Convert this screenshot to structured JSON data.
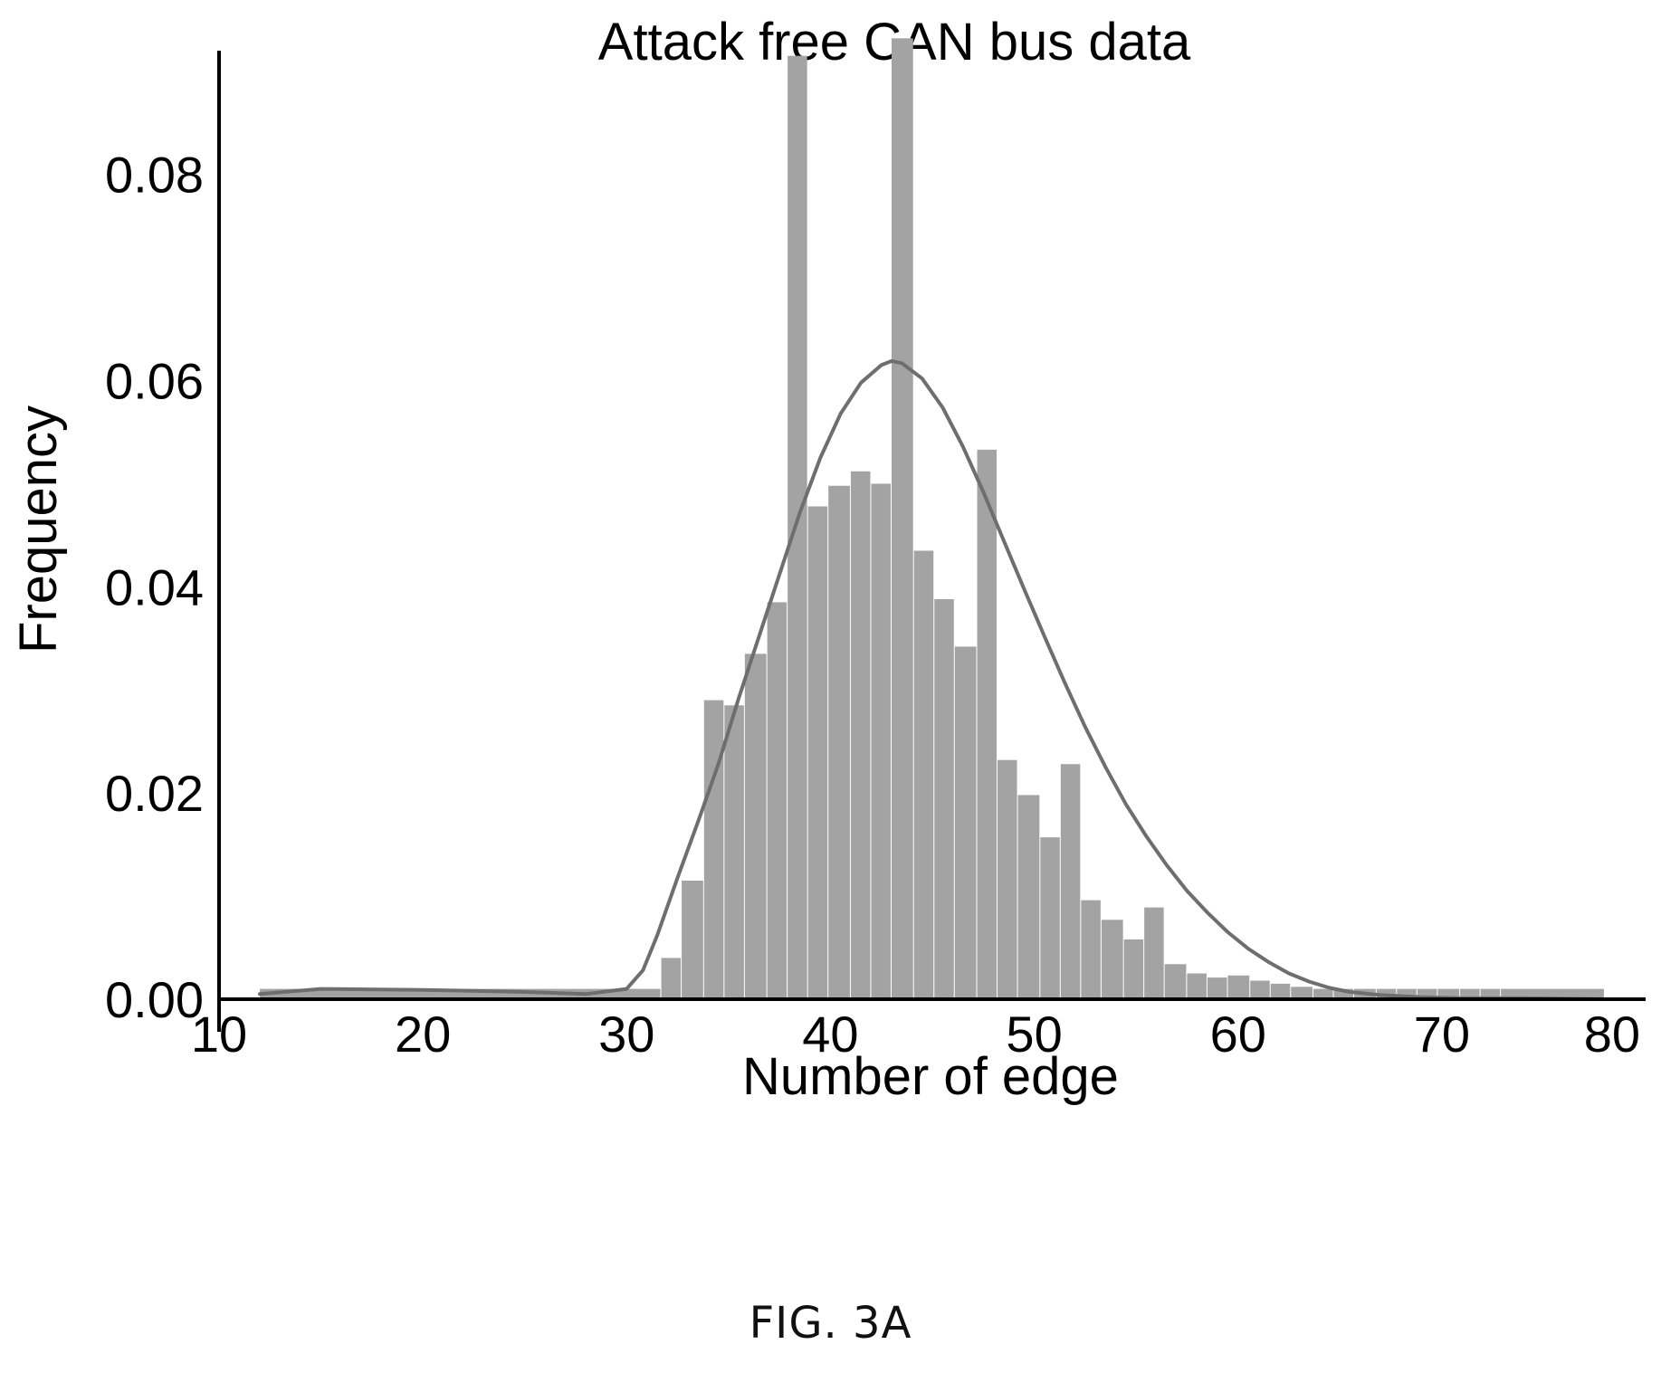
{
  "figure_label": "FIG. 3A",
  "chart_data": {
    "type": "bar",
    "title": "Attack free CAN bus data",
    "xlabel": "Number of edge",
    "ylabel": "Frequency",
    "xlim": [
      10,
      80
    ],
    "ylim": [
      0,
      0.092
    ],
    "x_ticks": [
      "10",
      "20",
      "30",
      "40",
      "50",
      "60",
      "70",
      "80"
    ],
    "y_ticks": [
      "0.00",
      "0.02",
      "0.04",
      "0.06",
      "0.08"
    ],
    "bin_edges": [
      12,
      31.7,
      32.7,
      33.8,
      34.8,
      35.8,
      36.9,
      37.9,
      38.9,
      39.9,
      41,
      42,
      43,
      44.1,
      45.1,
      46.1,
      47.2,
      48.2,
      49.2,
      50.3,
      51.3,
      52.3,
      53.3,
      54.4,
      55.4,
      56.4,
      57.5,
      58.5,
      59.5,
      60.6,
      61.6,
      62.6,
      63.7,
      64.7,
      65.7,
      66.8,
      67.8,
      68.8,
      69.8,
      70.9,
      71.9,
      72.9,
      78
    ],
    "values": [
      0.001,
      0.004,
      0.0115,
      0.029,
      0.0285,
      0.0335,
      0.0385,
      0.0915,
      0.0478,
      0.0498,
      0.0512,
      0.05,
      0.0932,
      0.0435,
      0.0388,
      0.0342,
      0.0533,
      0.0232,
      0.0198,
      0.0157,
      0.0228,
      0.0096,
      0.0077,
      0.0058,
      0.0089,
      0.0034,
      0.0025,
      0.0021,
      0.0023,
      0.0018,
      0.0015,
      0.0012,
      0.001,
      0.001,
      0.001,
      0.001,
      0.001,
      0.001,
      0.001,
      0.001,
      0.001,
      0.001
    ],
    "density_curve": {
      "x": [
        12,
        15,
        20,
        25,
        28,
        30,
        30.8,
        31.5,
        32.5,
        33.5,
        34.5,
        35.5,
        36.5,
        37.5,
        38.5,
        39.5,
        40.5,
        41.5,
        42.5,
        43,
        43.5,
        44.5,
        45.5,
        46.5,
        47.5,
        48.5,
        49.5,
        50.5,
        51.5,
        52.5,
        53.5,
        54.5,
        55.5,
        56.5,
        57.5,
        58.5,
        59.5,
        60.5,
        61.5,
        62.5,
        63.5,
        64.5,
        65.5,
        67,
        69,
        71,
        74,
        78
      ],
      "y": [
        0.0005,
        0.001,
        0.0009,
        0.0007,
        0.0005,
        0.001,
        0.0028,
        0.0062,
        0.0118,
        0.0172,
        0.0228,
        0.0292,
        0.0352,
        0.0412,
        0.0472,
        0.0525,
        0.0568,
        0.0598,
        0.0615,
        0.0619,
        0.0617,
        0.0602,
        0.0574,
        0.0536,
        0.0492,
        0.0445,
        0.0398,
        0.0352,
        0.0307,
        0.0264,
        0.0225,
        0.0189,
        0.0158,
        0.013,
        0.0105,
        0.0084,
        0.0065,
        0.0049,
        0.0036,
        0.0025,
        0.0017,
        0.0011,
        0.0007,
        0.0004,
        0.0002,
        0.0001,
        0.0001,
        0
      ]
    },
    "grid": false,
    "legend": "none",
    "colors": {
      "bars": "#a3a3a3",
      "curve": "#6e6e6e",
      "axes": "#000000"
    }
  }
}
